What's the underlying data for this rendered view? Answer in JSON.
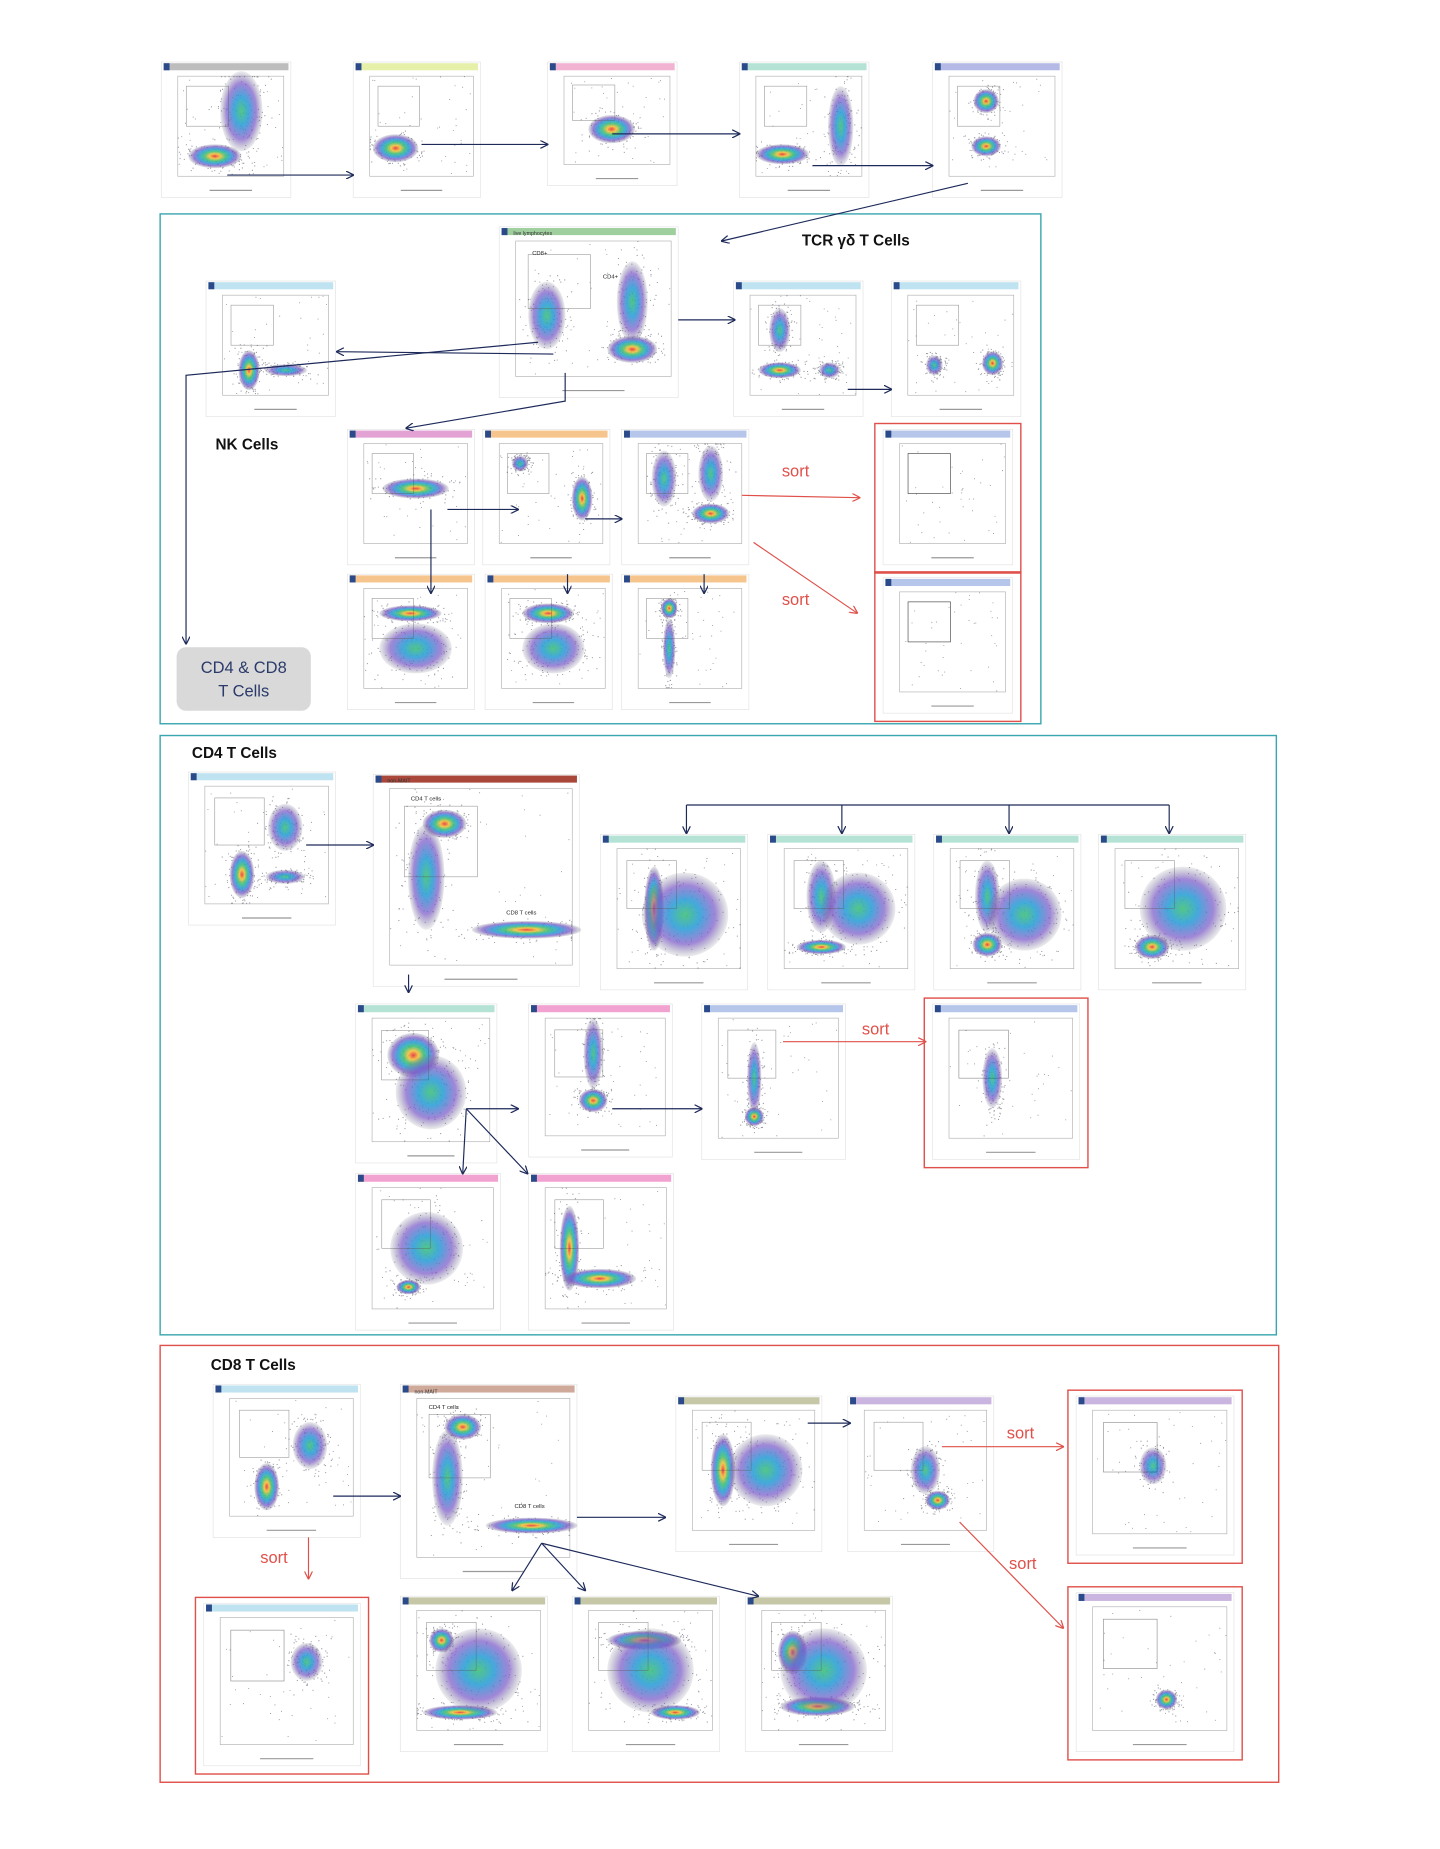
{
  "titles": {
    "tcr_gd": "TCR γδ T Cells",
    "nk": "NK Cells",
    "cd4_cd8": [
      "CD4 & CD8",
      "T Cells"
    ],
    "cd4": "CD4 T Cells",
    "cd8": "CD8 T Cells"
  },
  "sort_labels": [
    "sort",
    "sort",
    "sort",
    "sort",
    "sort",
    "sort"
  ],
  "panel_headers": {
    "live": "live lymphocytes",
    "nonmait_cd4": "non-MAIT",
    "nonmait_cd8": "non-MAIT"
  },
  "gates": {
    "live_cd8": "CD8+",
    "live_cd4": "CD4+",
    "cd4_cd4": "CD4 T cells",
    "cd4_cd8": "CD8 T cells",
    "cd8_cd4": "CD4 T cells",
    "cd8_cd8": "CD8 T cells"
  }
}
